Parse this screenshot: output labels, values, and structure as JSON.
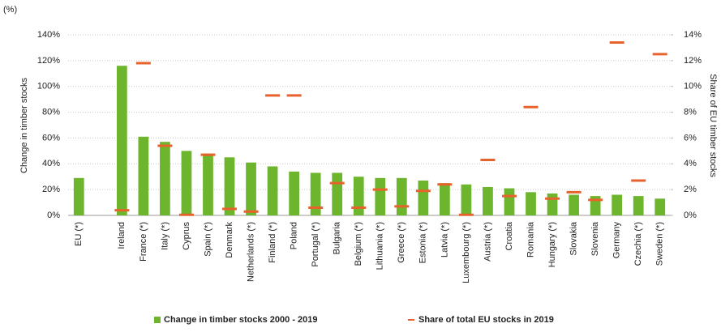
{
  "chart_data": {
    "type": "bar",
    "unit_label": "(%)",
    "y_label": "Change in timber stocks",
    "y2_label": "Share of EU timber stocks",
    "categories": [
      "EU (*)",
      null,
      "Ireland",
      "France (*)",
      "Italy (*)",
      "Cyprus",
      "Spain (*)",
      "Denmark",
      "Netherlands (*)",
      "Finland (*)",
      "Poland",
      "Portugal (*)",
      "Bulgaria",
      "Belgium (*)",
      "Lithuania (*)",
      "Greece (*)",
      "Estonia (*)",
      "Latvia (*)",
      "Luxembourg (*)",
      "Austria (*)",
      "Croatia",
      "Romania",
      "Hungary (*)",
      "Slovakia",
      "Slovenia",
      "Germany",
      "Czechia (*)",
      "Sweden (*)"
    ],
    "series": [
      {
        "name": "Change in timber stocks 2000 - 2019",
        "type": "bar",
        "color": "#6cb52d",
        "values": [
          29,
          null,
          116,
          61,
          57,
          50,
          48,
          45,
          41,
          38,
          34,
          33,
          33,
          30,
          29,
          29,
          27,
          25,
          24,
          22,
          21,
          18,
          17,
          16,
          15,
          16,
          15,
          13
        ]
      },
      {
        "name": "Share of total EU stocks in 2019",
        "type": "marker",
        "axis": "y2",
        "color": "#e8622c",
        "values": [
          null,
          null,
          0.4,
          11.8,
          5.4,
          0.05,
          4.7,
          0.5,
          0.3,
          9.3,
          9.3,
          0.6,
          2.5,
          0.6,
          2.0,
          0.7,
          1.9,
          2.4,
          0.05,
          4.3,
          1.5,
          8.4,
          1.3,
          1.8,
          1.2,
          13.4,
          2.7,
          12.5
        ]
      }
    ],
    "ylim": [
      0,
      140
    ],
    "yticks": [
      {
        "value": 0,
        "label": "0%"
      },
      {
        "value": 20,
        "label": "20%"
      },
      {
        "value": 40,
        "label": "40%"
      },
      {
        "value": 60,
        "label": "60%"
      },
      {
        "value": 80,
        "label": "80%"
      },
      {
        "value": 100,
        "label": "100%"
      },
      {
        "value": 120,
        "label": "120%"
      },
      {
        "value": 140,
        "label": "140%"
      }
    ],
    "y2lim": [
      0,
      14
    ],
    "y2ticks": [
      {
        "value": 0,
        "label": "0%"
      },
      {
        "value": 2,
        "label": "2%"
      },
      {
        "value": 4,
        "label": "4%"
      },
      {
        "value": 6,
        "label": "6%"
      },
      {
        "value": 8,
        "label": "8%"
      },
      {
        "value": 10,
        "label": "10%"
      },
      {
        "value": 12,
        "label": "12%"
      },
      {
        "value": 14,
        "label": "14%"
      }
    ],
    "grid": true
  }
}
